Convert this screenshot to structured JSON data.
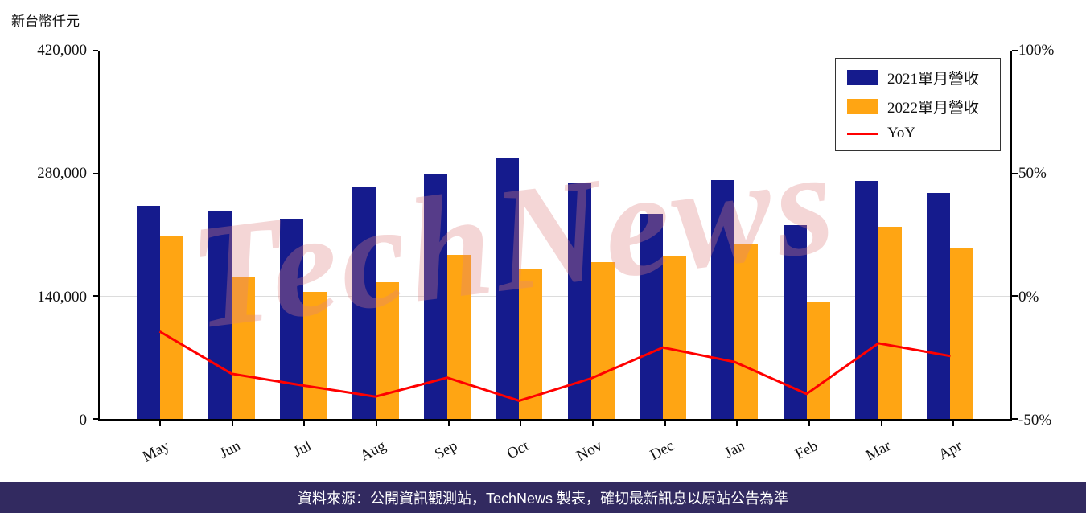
{
  "page": {
    "title": "新台幣仟元",
    "watermark": "TechNews",
    "footer": "資料來源：公開資訊觀測站，TechNews 製表，確切最新訊息以原站公告為準"
  },
  "colors": {
    "bar_2021": "#151B8D",
    "bar_2022": "#FFA513",
    "yoy_line": "#FF0000",
    "watermark": "#DE8282",
    "footer_bg": "#322A60",
    "grid": "#DCDCDC",
    "axis": "#000000"
  },
  "chart_data": {
    "type": "bar",
    "categories": [
      "May",
      "Jun",
      "Jul",
      "Aug",
      "Sep",
      "Oct",
      "Nov",
      "Dec",
      "Jan",
      "Feb",
      "Mar",
      "Apr"
    ],
    "series": [
      {
        "name": "2021單月營收",
        "type": "bar",
        "color": "#151B8D",
        "values": [
          243000,
          237000,
          228000,
          264000,
          280000,
          298000,
          269000,
          234000,
          272000,
          221000,
          271000,
          258000
        ]
      },
      {
        "name": "2022單月營收",
        "type": "bar",
        "color": "#FFA513",
        "values": [
          208000,
          162000,
          145000,
          156000,
          187000,
          171000,
          179000,
          185000,
          199000,
          133000,
          219000,
          195000
        ]
      },
      {
        "name": "YoY",
        "type": "line",
        "color": "#FF0000",
        "values": [
          -14.4,
          -31.6,
          -36.4,
          -40.9,
          -33.2,
          -42.6,
          -33.5,
          -20.9,
          -26.8,
          -39.8,
          -19.2,
          -24.4
        ]
      }
    ],
    "left_axis": {
      "label": "新台幣仟元",
      "ticks": [
        "420,000",
        "280,000",
        "140,000",
        "0"
      ],
      "min": 0,
      "max": 420000
    },
    "right_axis": {
      "ticks": [
        "100%",
        "50%",
        "0%",
        "-50%"
      ],
      "min": -50,
      "max": 100
    },
    "legend_position": "top-right",
    "grid": true,
    "title": "",
    "xlabel": "",
    "ylabel": "新台幣仟元"
  }
}
